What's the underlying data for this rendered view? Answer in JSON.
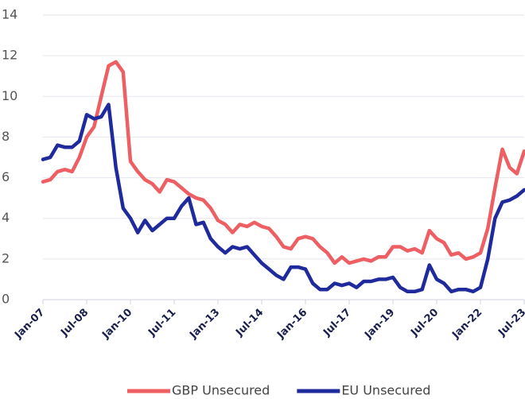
{
  "chart_data": {
    "type": "line",
    "categories": [
      "Jan-07",
      null,
      null,
      null,
      null,
      null,
      "Jul-08",
      null,
      null,
      null,
      null,
      null,
      "Jan-10",
      null,
      null,
      null,
      null,
      null,
      "Jul-11",
      null,
      null,
      null,
      null,
      null,
      "Jan-13",
      null,
      null,
      null,
      null,
      null,
      "Jul-14",
      null,
      null,
      null,
      null,
      null,
      "Jan-16",
      null,
      null,
      null,
      null,
      null,
      "Jul-17",
      null,
      null,
      null,
      null,
      null,
      "Jan-19",
      null,
      null,
      null,
      null,
      null,
      "Jul-20",
      null,
      null,
      null,
      null,
      null,
      "Jan-22",
      null,
      null,
      null,
      null,
      null,
      "Jul-23"
    ],
    "series": [
      {
        "name": "GBP Unsecured",
        "color": "#ee5f63",
        "values": [
          5.8,
          5.9,
          6.3,
          6.4,
          6.3,
          7.0,
          8.0,
          8.5,
          10.0,
          11.5,
          11.7,
          11.2,
          6.8,
          6.3,
          5.9,
          5.7,
          5.3,
          5.9,
          5.8,
          5.5,
          5.2,
          5.0,
          4.9,
          4.5,
          3.9,
          3.7,
          3.3,
          3.7,
          3.6,
          3.8,
          3.6,
          3.5,
          3.1,
          2.6,
          2.5,
          3.0,
          3.1,
          3.0,
          2.6,
          2.3,
          1.8,
          2.1,
          1.8,
          1.9,
          2.0,
          1.9,
          2.1,
          2.1,
          2.6,
          2.6,
          2.4,
          2.5,
          2.3,
          3.4,
          3.0,
          2.8,
          2.2,
          2.3,
          2.0,
          2.1,
          2.3,
          3.5,
          5.5,
          7.4,
          6.5,
          6.2,
          7.3
        ]
      },
      {
        "name": "EU Unsecured",
        "color": "#1f2b9c",
        "values": [
          6.9,
          7.0,
          7.6,
          7.5,
          7.5,
          7.8,
          9.1,
          8.9,
          9.0,
          9.6,
          6.5,
          4.5,
          4.0,
          3.3,
          3.9,
          3.4,
          3.7,
          4.0,
          4.0,
          4.6,
          5.0,
          3.7,
          3.8,
          3.0,
          2.6,
          2.3,
          2.6,
          2.5,
          2.6,
          2.2,
          1.8,
          1.5,
          1.2,
          1.0,
          1.6,
          1.6,
          1.5,
          0.8,
          0.5,
          0.5,
          0.8,
          0.7,
          0.8,
          0.6,
          0.9,
          0.9,
          1.0,
          1.0,
          1.1,
          0.6,
          0.4,
          0.4,
          0.5,
          1.7,
          1.0,
          0.8,
          0.4,
          0.5,
          0.5,
          0.4,
          0.6,
          2.0,
          4.0,
          4.8,
          4.9,
          5.1,
          5.4
        ]
      }
    ],
    "ylim": [
      0,
      14
    ],
    "yticks": [
      0,
      2,
      4,
      6,
      8,
      10,
      12,
      14
    ],
    "grid": true,
    "legend": "bottom"
  }
}
